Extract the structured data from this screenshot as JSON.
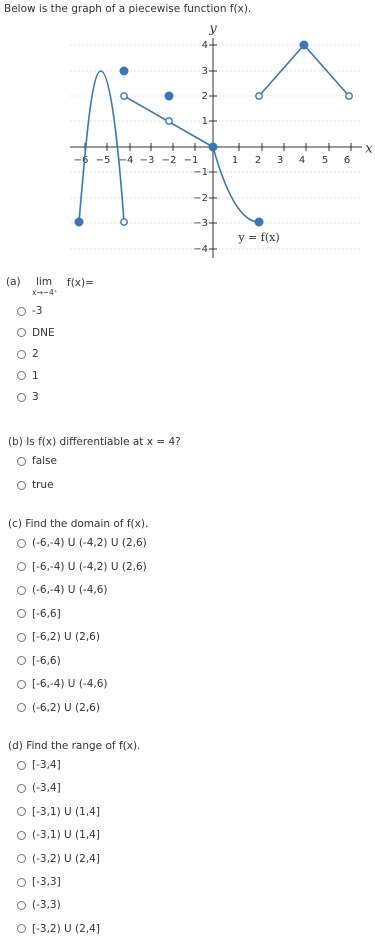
{
  "intro": "Below is the graph of a piecewise function f(x).",
  "graph": {
    "y_axis_label": "y",
    "x_axis_label": "x",
    "function_label": "y = f(x)",
    "xtick_labels": [
      "−6",
      "−5",
      "−4",
      "−3",
      "−2",
      "−1",
      "1",
      "2",
      "3",
      "4",
      "5",
      "6"
    ],
    "ytick_labels": [
      "4",
      "3",
      "2",
      "1",
      "−1",
      "−2",
      "−3",
      "−4"
    ]
  },
  "questions": [
    {
      "label": "(a)",
      "lim": "lim",
      "lim_sub": "x→−4⁺",
      "prompt": "f(x)=",
      "options": [
        "-3",
        "DNE",
        "2",
        "1",
        "3"
      ]
    },
    {
      "prompt": "(b) Is f(x) differentiable at x = 4?",
      "options": [
        "false",
        "true"
      ]
    },
    {
      "prompt": "(c) Find the domain of f(x).",
      "options": [
        "(-6,-4) U (-4,2) U (2,6)",
        "[-6,-4) U (-4,2) U (2,6)",
        "(-6,-4) U (-4,6)",
        "[-6,6]",
        "[-6,2) U (2,6)",
        "[-6,6)",
        "[-6,-4) U (-4,6)",
        "(-6,2) U (2,6)"
      ]
    },
    {
      "prompt": "(d) Find the range of f(x).",
      "options": [
        "[-3,4]",
        "(-3,4]",
        "[-3,1) U (1,4]",
        "(-3,1) U (1,4]",
        "(-3,2) U (2,4]",
        "[-3,3]",
        "(-3,3)",
        "[-3,2) U (2,4]"
      ]
    }
  ]
}
